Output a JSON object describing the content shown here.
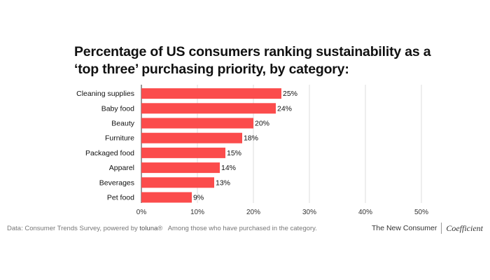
{
  "title_lines": [
    "Percentage of US consumers ranking sustainability as a",
    "‘top three’ purchasing priority, by category:"
  ],
  "chart_data": {
    "type": "bar",
    "orientation": "horizontal",
    "categories": [
      "Cleaning supplies",
      "Baby food",
      "Beauty",
      "Furniture",
      "Packaged food",
      "Apparel",
      "Beverages",
      "Pet food"
    ],
    "values": [
      25,
      24,
      20,
      18,
      15,
      14,
      13,
      9
    ],
    "value_labels": [
      "25%",
      "24%",
      "20%",
      "18%",
      "15%",
      "14%",
      "13%",
      "9%"
    ],
    "x_ticks": [
      "0%",
      "10%",
      "20%",
      "30%",
      "40%",
      "50%"
    ],
    "xlim": [
      0,
      50
    ],
    "grid": true,
    "bar_color": "#fb4c4c"
  },
  "footer": {
    "source": "Data: Consumer Trends Survey, powered by",
    "source_brand": "toluna",
    "note": "Among those who have purchased in the category.",
    "logo_primary": "The New Consumer",
    "logo_secondary": "Coefficient"
  }
}
